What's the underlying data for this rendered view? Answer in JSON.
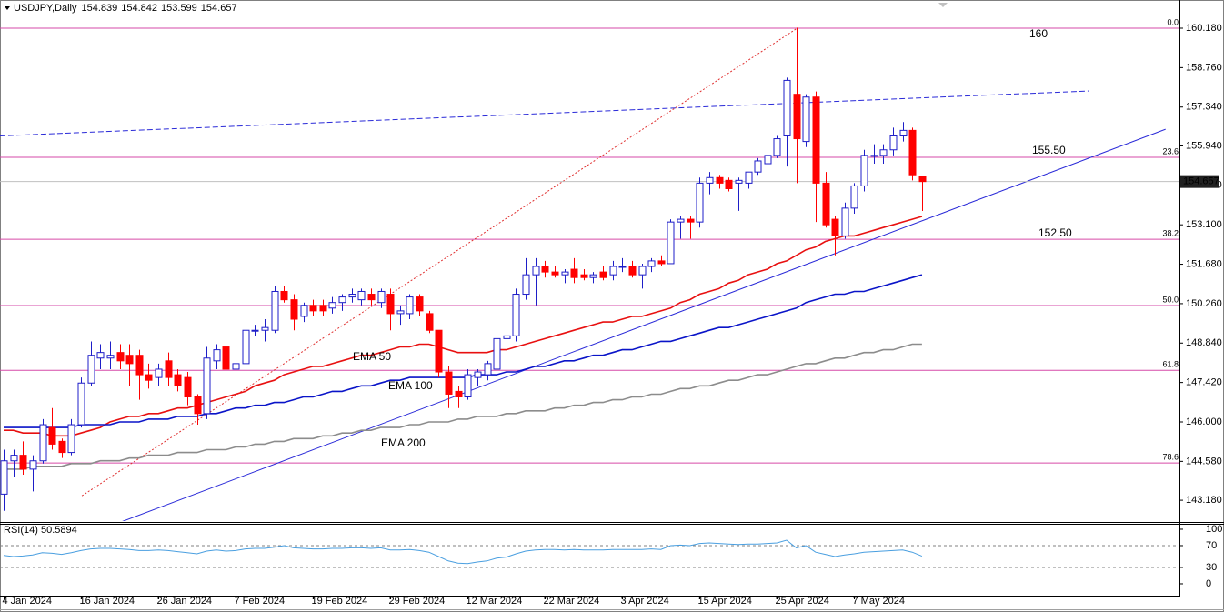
{
  "chart_data": [
    {
      "type": "candlestick",
      "title": "USDJPY,Daily",
      "categories": [
        "4 Jan 2024",
        null,
        null,
        null,
        null,
        null,
        null,
        null,
        "16 Jan 2024",
        null,
        null,
        null,
        null,
        null,
        null,
        null,
        "26 Jan 2024",
        null,
        null,
        null,
        null,
        null,
        null,
        null,
        "7 Feb 2024",
        null,
        null,
        null,
        null,
        null,
        null,
        null,
        "19 Feb 2024",
        null,
        null,
        null,
        null,
        null,
        null,
        null,
        "29 Feb 2024",
        null,
        null,
        null,
        null,
        null,
        null,
        null,
        "12 Mar 2024",
        null,
        null,
        null,
        null,
        null,
        null,
        null,
        "22 Mar 2024",
        null,
        null,
        null,
        null,
        null,
        null,
        null,
        "3 Apr 2024",
        null,
        null,
        null,
        null,
        null,
        null,
        null,
        "15 Apr 2024",
        null,
        null,
        null,
        null,
        null,
        null,
        null,
        "25 Apr 2024",
        null,
        null,
        null,
        null,
        null,
        null,
        null,
        "7 May 2024",
        null,
        null,
        null,
        null,
        null,
        null,
        null
      ],
      "open": [
        143.4,
        144.6,
        144.8,
        144.3,
        144.6,
        145.8,
        145.3,
        144.9,
        145.9,
        147.4,
        148.3,
        148.3,
        148.5,
        148.4,
        148.4,
        147.7,
        147.6,
        148.2,
        147.7,
        147.6,
        146.9,
        146.3,
        148.2,
        148.7,
        147.9,
        148.1,
        149.3,
        149.3,
        149.3,
        150.7,
        150.4,
        149.8,
        150.2,
        150.2,
        150.1,
        150.3,
        150.5,
        150.4,
        150.6,
        150.3,
        150.6,
        149.9,
        149.9,
        150.5,
        149.9,
        149.3,
        147.8,
        147.1,
        146.9,
        147.6,
        147.7,
        147.9,
        149.0,
        149.1,
        150.6,
        151.3,
        151.6,
        151.4,
        151.3,
        151.5,
        151.3,
        151.2,
        151.4,
        151.3,
        151.6,
        151.6,
        151.3,
        151.6,
        151.8,
        151.7,
        153.2,
        153.3,
        153.2,
        154.6,
        154.8,
        154.7,
        154.6,
        154.6,
        155.0,
        155.3,
        155.6,
        156.3,
        157.8,
        156.1,
        157.7,
        154.6,
        153.3,
        152.7,
        153.7,
        154.5,
        155.6,
        155.6,
        155.8,
        156.3,
        156.5,
        154.839
      ],
      "high": [
        145.0,
        145.0,
        145.3,
        144.8,
        146.1,
        146.5,
        145.4,
        146.1,
        147.6,
        148.9,
        148.8,
        148.9,
        148.8,
        148.8,
        148.6,
        148.1,
        148.1,
        148.5,
        147.9,
        147.8,
        147.0,
        148.7,
        148.8,
        148.8,
        148.3,
        149.6,
        149.5,
        149.7,
        150.9,
        150.9,
        150.6,
        150.3,
        150.4,
        150.4,
        150.5,
        150.6,
        150.8,
        150.8,
        150.8,
        150.8,
        150.8,
        150.2,
        150.6,
        150.6,
        150.0,
        149.3,
        148.0,
        147.3,
        147.9,
        147.9,
        148.2,
        149.3,
        149.2,
        150.8,
        151.9,
        151.9,
        151.8,
        151.6,
        151.5,
        151.9,
        151.5,
        151.4,
        151.6,
        151.8,
        151.9,
        151.8,
        151.7,
        151.9,
        152.0,
        153.3,
        153.4,
        153.4,
        154.8,
        155.0,
        154.9,
        154.8,
        154.8,
        155.0,
        155.5,
        155.8,
        156.3,
        158.4,
        160.2,
        157.8,
        157.9,
        155.0,
        153.4,
        153.9,
        154.6,
        155.8,
        156.0,
        156.0,
        156.6,
        156.8,
        156.6,
        154.842
      ],
      "low": [
        142.8,
        144.0,
        144.1,
        143.5,
        144.5,
        145.0,
        144.7,
        144.8,
        145.8,
        147.3,
        147.9,
        147.9,
        147.9,
        147.3,
        146.8,
        147.2,
        147.3,
        147.3,
        147.1,
        146.6,
        145.9,
        146.1,
        147.9,
        147.6,
        147.6,
        148.0,
        149.1,
        148.9,
        149.2,
        150.3,
        149.3,
        149.6,
        149.8,
        149.8,
        149.9,
        150.0,
        150.3,
        150.2,
        150.2,
        150.1,
        149.3,
        149.5,
        149.7,
        149.8,
        149.2,
        147.6,
        146.5,
        146.5,
        146.8,
        147.3,
        147.5,
        147.8,
        148.8,
        148.9,
        150.4,
        150.2,
        151.2,
        151.2,
        151.0,
        151.0,
        151.1,
        151.0,
        151.1,
        151.1,
        151.4,
        151.2,
        150.8,
        151.4,
        151.6,
        151.7,
        152.6,
        152.6,
        153.0,
        154.2,
        154.4,
        154.3,
        153.6,
        154.4,
        154.9,
        155.0,
        155.5,
        155.2,
        154.6,
        155.9,
        153.2,
        153.0,
        152.0,
        152.6,
        153.5,
        154.3,
        155.3,
        155.3,
        155.6,
        156.1,
        154.7,
        153.599
      ],
      "close": [
        144.6,
        144.8,
        144.3,
        144.6,
        145.9,
        145.2,
        144.9,
        145.9,
        147.4,
        148.4,
        148.5,
        148.4,
        148.2,
        148.1,
        147.7,
        147.5,
        147.9,
        147.6,
        147.3,
        146.9,
        146.3,
        148.3,
        148.6,
        147.9,
        148.1,
        149.3,
        149.3,
        149.4,
        150.7,
        150.4,
        149.7,
        150.2,
        150.0,
        150.0,
        150.3,
        150.5,
        150.6,
        150.7,
        150.4,
        150.7,
        149.9,
        150.0,
        150.5,
        150.0,
        149.3,
        147.8,
        147.0,
        146.9,
        147.7,
        147.8,
        148.1,
        149.0,
        149.1,
        150.6,
        151.3,
        151.6,
        151.4,
        151.3,
        151.4,
        151.2,
        151.2,
        151.3,
        151.2,
        151.6,
        151.6,
        151.3,
        151.6,
        151.8,
        151.7,
        153.2,
        153.3,
        153.2,
        154.6,
        154.8,
        154.6,
        154.4,
        154.7,
        155.0,
        155.4,
        155.6,
        156.2,
        158.3,
        156.2,
        157.7,
        154.6,
        153.1,
        152.7,
        153.7,
        154.5,
        155.6,
        155.6,
        155.8,
        156.3,
        156.5,
        154.9,
        154.657
      ],
      "up_color": "#ffffff",
      "up_border": "#1e1ec8",
      "down_color": "#ff0000",
      "ylim": [
        142.43,
        161.13
      ],
      "yticks": [
        {
          "value": 160.18,
          "label": "160.180"
        },
        {
          "value": 158.76,
          "label": "158.760"
        },
        {
          "value": 157.34,
          "label": "157.340"
        },
        {
          "value": 155.94,
          "label": "155.940"
        },
        {
          "value": 154.52,
          "label": "154.520"
        },
        {
          "value": 153.1,
          "label": "153.100"
        },
        {
          "value": 151.68,
          "label": "151.680"
        },
        {
          "value": 150.26,
          "label": "150.260"
        },
        {
          "value": 148.84,
          "label": "148.840"
        },
        {
          "value": 147.42,
          "label": "147.420"
        },
        {
          "value": 146,
          "label": "146.000"
        },
        {
          "value": 144.58,
          "label": "144.580"
        },
        {
          "value": 143.18,
          "label": "143.180"
        }
      ],
      "series": [
        {
          "name": "EMA 50",
          "color": "#e81010",
          "values": [
            145.7,
            145.7,
            145.6,
            145.6,
            145.6,
            145.5,
            145.5,
            145.5,
            145.6,
            145.7,
            145.8,
            146.0,
            146.1,
            146.2,
            146.2,
            146.3,
            146.3,
            146.4,
            146.5,
            146.5,
            146.6,
            146.7,
            146.8,
            146.9,
            147.0,
            147.1,
            147.3,
            147.4,
            147.5,
            147.7,
            147.8,
            147.9,
            148.0,
            148.0,
            148.1,
            148.2,
            148.3,
            148.4,
            148.4,
            148.5,
            148.6,
            148.7,
            148.7,
            148.8,
            148.8,
            148.7,
            148.6,
            148.5,
            148.5,
            148.5,
            148.5,
            148.6,
            148.6,
            148.7,
            148.8,
            148.9,
            149.0,
            149.1,
            149.2,
            149.3,
            149.4,
            149.5,
            149.6,
            149.6,
            149.7,
            149.8,
            149.8,
            149.9,
            150.0,
            150.1,
            150.3,
            150.4,
            150.6,
            150.7,
            150.8,
            151.0,
            151.1,
            151.3,
            151.4,
            151.5,
            151.7,
            151.8,
            152.0,
            152.2,
            152.3,
            152.5,
            152.6,
            152.7,
            152.7,
            152.8,
            152.9,
            153.0,
            153.1,
            153.2,
            153.3,
            153.4
          ]
        },
        {
          "name": "EMA 100",
          "color": "#0a14c8",
          "values": [
            145.8,
            145.8,
            145.8,
            145.8,
            145.8,
            145.8,
            145.8,
            145.8,
            145.9,
            145.9,
            145.9,
            145.9,
            146.0,
            146.0,
            146.0,
            146.1,
            146.1,
            146.1,
            146.2,
            146.2,
            146.2,
            146.3,
            146.3,
            146.4,
            146.5,
            146.5,
            146.6,
            146.6,
            146.7,
            146.7,
            146.8,
            146.9,
            146.9,
            147.0,
            147.1,
            147.1,
            147.2,
            147.3,
            147.3,
            147.4,
            147.5,
            147.5,
            147.6,
            147.6,
            147.6,
            147.6,
            147.6,
            147.6,
            147.6,
            147.7,
            147.7,
            147.7,
            147.8,
            147.8,
            147.9,
            148.0,
            148.0,
            148.1,
            148.2,
            148.2,
            148.3,
            148.4,
            148.4,
            148.5,
            148.6,
            148.6,
            148.7,
            148.8,
            148.9,
            148.9,
            149.0,
            149.1,
            149.2,
            149.3,
            149.4,
            149.4,
            149.5,
            149.6,
            149.7,
            149.8,
            149.9,
            150.0,
            150.1,
            150.3,
            150.4,
            150.5,
            150.6,
            150.6,
            150.7,
            150.7,
            150.8,
            150.9,
            151.0,
            151.1,
            151.2,
            151.3
          ]
        },
        {
          "name": "EMA 200",
          "color": "#8c8c8c",
          "values": [
            144.3,
            144.3,
            144.3,
            144.4,
            144.4,
            144.4,
            144.4,
            144.5,
            144.5,
            144.5,
            144.6,
            144.6,
            144.6,
            144.7,
            144.7,
            144.8,
            144.8,
            144.8,
            144.9,
            144.9,
            144.9,
            145.0,
            145.0,
            145.0,
            145.1,
            145.1,
            145.2,
            145.2,
            145.3,
            145.3,
            145.4,
            145.4,
            145.4,
            145.5,
            145.5,
            145.6,
            145.6,
            145.7,
            145.7,
            145.8,
            145.8,
            145.8,
            145.9,
            145.9,
            146.0,
            146.0,
            146.0,
            146.1,
            146.1,
            146.2,
            146.2,
            146.2,
            146.3,
            146.3,
            146.4,
            146.4,
            146.4,
            146.5,
            146.5,
            146.6,
            146.6,
            146.7,
            146.7,
            146.8,
            146.8,
            146.9,
            146.9,
            147.0,
            147.0,
            147.1,
            147.2,
            147.2,
            147.3,
            147.3,
            147.4,
            147.5,
            147.5,
            147.6,
            147.7,
            147.7,
            147.8,
            147.9,
            148.0,
            148.1,
            148.1,
            148.2,
            148.3,
            148.3,
            148.4,
            148.5,
            148.5,
            148.6,
            148.6,
            148.7,
            148.8,
            148.8
          ]
        }
      ],
      "fib_color": "#d64aa8",
      "fib_levels": [
        {
          "value": 160.18,
          "label": "0.0"
        },
        {
          "value": 155.53,
          "label": "23.6"
        },
        {
          "value": 152.58,
          "label": "38.2"
        },
        {
          "value": 150.19,
          "label": "50.0"
        },
        {
          "value": 147.86,
          "label": "61.8"
        },
        {
          "value": 144.52,
          "label": "78.6"
        }
      ],
      "annotation_color": "#1a28d8",
      "annotations": [
        "160",
        "155.50",
        "152.50"
      ],
      "trendlines": [
        {
          "color": "#2a2ad8",
          "style": "solid",
          "x": [
            11.85,
            120.2
          ],
          "y": [
            142.36,
            156.54
          ]
        },
        {
          "color": "#2a2ad8",
          "style": "dashed",
          "x": [
            -0.38,
            112.3
          ],
          "y": [
            156.3,
            157.92
          ]
        },
        {
          "color": "#e03030",
          "style": "dotted",
          "x": [
            8.1,
            82.1
          ],
          "y": [
            143.34,
            160.18
          ]
        }
      ],
      "price_line_color": "#c0c0c0"
    },
    {
      "type": "line",
      "title": "RSI(14) 50.5894",
      "color": "#4a9fe0",
      "values": [
        52,
        50,
        51,
        53,
        57,
        56,
        54,
        57,
        61,
        64,
        65,
        65,
        64,
        63,
        61,
        61,
        62,
        61,
        59,
        57,
        55,
        60,
        62,
        60,
        61,
        64,
        65,
        65,
        67,
        70,
        66,
        65,
        64,
        64,
        65,
        65,
        66,
        66,
        65,
        66,
        62,
        62,
        63,
        61,
        58,
        50,
        42,
        38,
        37,
        40,
        42,
        47,
        49,
        55,
        60,
        62,
        63,
        63,
        62,
        63,
        62,
        62,
        62,
        63,
        63,
        63,
        63,
        64,
        63,
        70,
        71,
        70,
        74,
        75,
        74,
        73,
        72,
        73,
        73,
        74,
        75,
        80,
        66,
        70,
        58,
        54,
        50,
        53,
        55,
        58,
        59,
        60,
        61,
        62,
        58,
        50.5894
      ],
      "ylim": [
        -21.7,
        108.3
      ],
      "yticks": [
        100,
        70,
        30,
        0
      ],
      "levels": [
        70,
        30
      ]
    }
  ]
}
